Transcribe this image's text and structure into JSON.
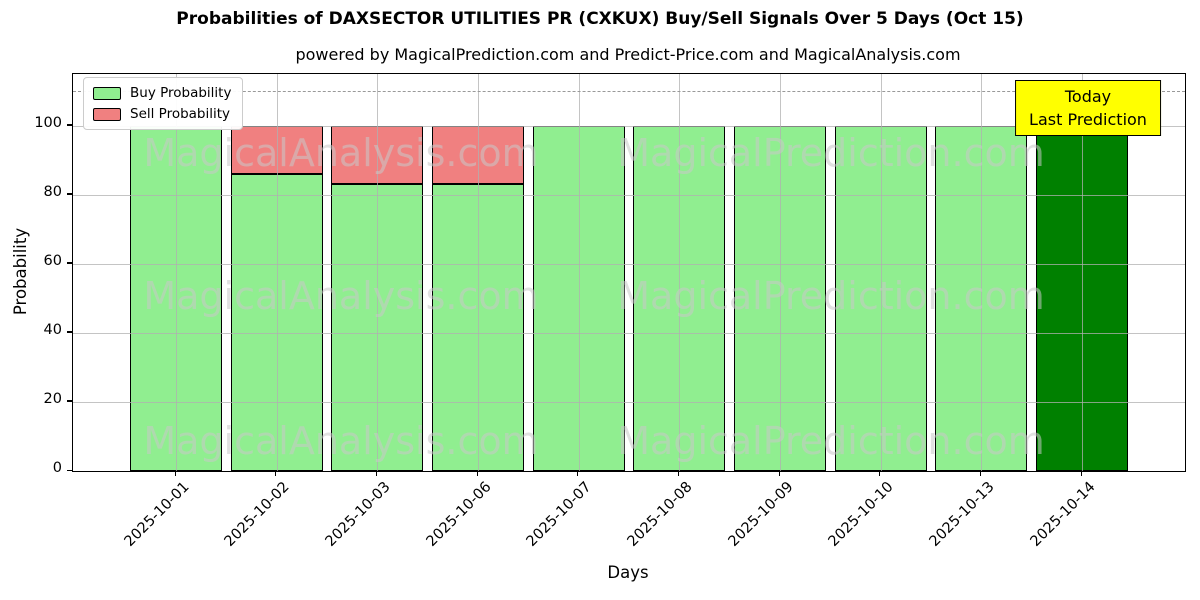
{
  "title": "Probabilities of DAXSECTOR UTILITIES PR (CXKUX) Buy/Sell Signals Over 5 Days (Oct 15)",
  "subtitle": "powered by MagicalPrediction.com and Predict-Price.com and MagicalAnalysis.com",
  "legend": {
    "items": [
      {
        "label": "Buy Probability",
        "color": "#90ee90"
      },
      {
        "label": "Sell Probability",
        "color": "#f08080"
      }
    ]
  },
  "annotation": {
    "line1": "Today",
    "line2": "Last Prediction",
    "bg_color": "#ffff00",
    "border_color": "#000000"
  },
  "watermarks": {
    "left_text": "MagicalAnalysis.com",
    "right_text": "MagicalPrediction.com"
  },
  "colors": {
    "buy_bar": "#90ee90",
    "sell_bar": "#f08080",
    "today_bar": "#008000",
    "bar_edge": "#000000",
    "dashed_line": "#999999",
    "grid": "#b0b0b0",
    "watermark": "#c9c9c9"
  },
  "chart_data": {
    "type": "bar",
    "stacked": true,
    "title": "Probabilities of DAXSECTOR UTILITIES PR (CXKUX) Buy/Sell Signals Over 5 Days (Oct 15)",
    "subtitle": "powered by MagicalPrediction.com and Predict-Price.com and MagicalAnalysis.com",
    "xlabel": "Days",
    "ylabel": "Probability",
    "categories": [
      "2025-10-01",
      "2025-10-02",
      "2025-10-03",
      "2025-10-06",
      "2025-10-07",
      "2025-10-08",
      "2025-10-09",
      "2025-10-10",
      "2025-10-13",
      "2025-10-14"
    ],
    "series": [
      {
        "name": "Buy Probability",
        "color": "#90ee90",
        "values": [
          100,
          86,
          83,
          83,
          100,
          100,
          100,
          100,
          100,
          100
        ]
      },
      {
        "name": "Sell Probability",
        "color": "#f08080",
        "values": [
          0,
          14,
          17,
          17,
          0,
          0,
          0,
          0,
          0,
          0
        ]
      }
    ],
    "today_bar": {
      "category": "2025-10-14",
      "index": 9,
      "color": "#008000",
      "label": "Today\nLast Prediction"
    },
    "ylim": [
      0,
      115
    ],
    "yticks": [
      0,
      20,
      40,
      60,
      80,
      100
    ],
    "grid": true,
    "legend_position": "upper left",
    "dashed_line_y": 110
  }
}
